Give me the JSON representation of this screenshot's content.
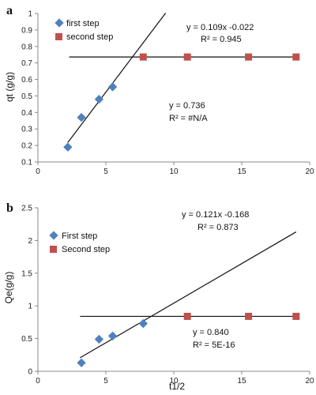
{
  "chart_data": [
    {
      "panel_label": "a",
      "type": "scatter",
      "ylabel": "qt (g/g)",
      "xlabel": "",
      "xlim": [
        0,
        20
      ],
      "ylim": [
        0.1,
        1
      ],
      "xticks": [
        0,
        5,
        10,
        15,
        20
      ],
      "yticks": [
        0.1,
        0.2,
        0.3,
        0.4,
        0.5,
        0.6,
        0.7,
        0.8,
        0.9,
        1
      ],
      "grid": false,
      "legend_position": "top-left",
      "series": [
        {
          "name": "first step",
          "marker": "diamond",
          "color": "#4F81BD",
          "x": [
            2.2,
            3.2,
            4.5,
            5.5
          ],
          "y": [
            0.19,
            0.37,
            0.48,
            0.555
          ],
          "trendline": {
            "slope": 0.109,
            "intercept": -0.022,
            "x_range": [
              2.2,
              9.4
            ]
          },
          "equation": "y = 0.109x -0.022",
          "r2": "R² = 0.945"
        },
        {
          "name": "second step",
          "marker": "square",
          "color": "#C0504D",
          "x": [
            7.75,
            11.0,
            15.5,
            19.0
          ],
          "y": [
            0.736,
            0.736,
            0.736,
            0.736
          ],
          "trendline": {
            "slope": 0,
            "intercept": 0.736,
            "x_range": [
              2.3,
              19.0
            ]
          },
          "equation": "y = 0.736",
          "r2": "R² = #N/A"
        }
      ]
    },
    {
      "panel_label": "b",
      "type": "scatter",
      "ylabel": "Qe(g/g)",
      "xlabel": "t1/2",
      "xlim": [
        0,
        20
      ],
      "ylim": [
        0,
        2.5
      ],
      "xticks": [
        0,
        5,
        10,
        15,
        20
      ],
      "yticks": [
        0,
        0.5,
        1,
        1.5,
        2,
        2.5
      ],
      "grid": false,
      "legend_position": "middle-left",
      "series": [
        {
          "name": "First step",
          "marker": "diamond",
          "color": "#4F81BD",
          "x": [
            3.2,
            4.5,
            5.5,
            7.75
          ],
          "y": [
            0.13,
            0.49,
            0.54,
            0.73
          ],
          "trendline": {
            "slope": 0.121,
            "intercept": -0.168,
            "x_range": [
              3.1,
              19.0
            ]
          },
          "equation": "y = 0.121x -0.168",
          "r2": "R² = 0.873"
        },
        {
          "name": "Second step",
          "marker": "square",
          "color": "#C0504D",
          "x": [
            11.0,
            15.5,
            19.0
          ],
          "y": [
            0.84,
            0.84,
            0.84
          ],
          "trendline": {
            "slope": 0,
            "intercept": 0.84,
            "x_range": [
              3.1,
              19.0
            ]
          },
          "equation": "y = 0.840",
          "r2": "R² = 5E-16"
        }
      ]
    }
  ]
}
